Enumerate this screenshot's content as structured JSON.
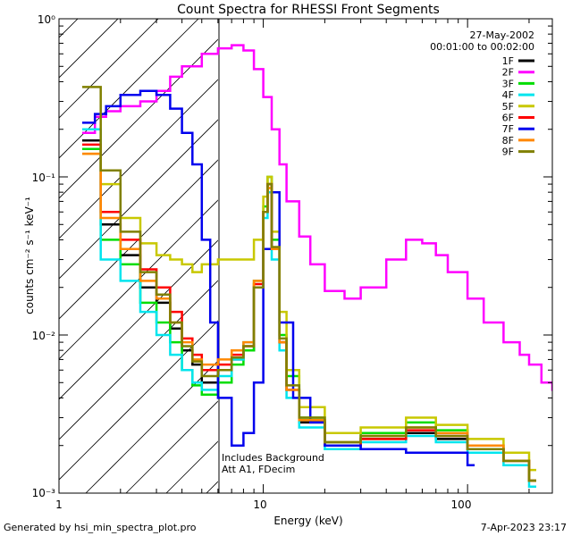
{
  "chart_data": {
    "type": "line",
    "title": "Count Spectra for RHESSI Front Segments",
    "xlabel": "Energy (keV)",
    "ylabel": "counts cm⁻² s⁻¹ keV⁻¹",
    "x_scale": "log",
    "y_scale": "log",
    "xlim": [
      1,
      260
    ],
    "ylim": [
      0.001,
      1
    ],
    "x_tick_labels": [
      "1",
      "10",
      "100"
    ],
    "y_tick_labels": [
      "10⁰",
      "10⁻¹",
      "10⁻²",
      "10⁻³"
    ],
    "date": "27-May-2002",
    "time_range": "00:01:00 to 00:02:00",
    "annotation_background": "Includes Background",
    "annotation_atten": "Att A1, FDecim",
    "hatched_region_max_keV": 6,
    "footer_left": "Generated by hsi_min_spectra_plot.pro",
    "footer_right": "7-Apr-2023 23:17",
    "legend_placement": "top-right",
    "series": [
      {
        "name": "1F",
        "color": "#000000",
        "x": [
          1.3,
          1.6,
          2,
          2.5,
          3,
          3.5,
          4,
          4.5,
          5,
          6,
          7,
          8,
          9,
          10,
          10.5,
          11,
          12,
          13,
          15,
          20,
          30,
          50,
          70,
          100,
          150,
          200
        ],
        "y": [
          0.17,
          0.05,
          0.032,
          0.02,
          0.016,
          0.011,
          0.008,
          0.0065,
          0.005,
          0.006,
          0.007,
          0.008,
          0.02,
          0.06,
          0.09,
          0.035,
          0.009,
          0.0045,
          0.0028,
          0.002,
          0.0022,
          0.0024,
          0.0022,
          0.0019,
          0.0016,
          0.0012
        ]
      },
      {
        "name": "2F",
        "color": "#ff00ff",
        "x": [
          1.3,
          1.5,
          1.7,
          2,
          2.5,
          3,
          3.5,
          4,
          5,
          6,
          7,
          8,
          9,
          10,
          11,
          12,
          13,
          15,
          17,
          20,
          25,
          30,
          40,
          50,
          60,
          70,
          80,
          100,
          120,
          150,
          180,
          200,
          230,
          260
        ],
        "y": [
          0.19,
          0.24,
          0.26,
          0.28,
          0.3,
          0.35,
          0.43,
          0.5,
          0.6,
          0.65,
          0.68,
          0.63,
          0.48,
          0.32,
          0.2,
          0.12,
          0.07,
          0.042,
          0.028,
          0.019,
          0.017,
          0.02,
          0.03,
          0.04,
          0.038,
          0.032,
          0.025,
          0.017,
          0.012,
          0.009,
          0.0075,
          0.0065,
          0.005,
          0.0045
        ]
      },
      {
        "name": "3F",
        "color": "#00dd00",
        "x": [
          1.3,
          1.6,
          2,
          2.5,
          3,
          3.5,
          4,
          4.5,
          5,
          6,
          7,
          8,
          9,
          10,
          10.5,
          11,
          12,
          13,
          15,
          20,
          30,
          50,
          70,
          100,
          150,
          200
        ],
        "y": [
          0.15,
          0.04,
          0.028,
          0.016,
          0.012,
          0.009,
          0.006,
          0.0048,
          0.0042,
          0.005,
          0.0065,
          0.008,
          0.022,
          0.065,
          0.1,
          0.04,
          0.01,
          0.0055,
          0.003,
          0.0021,
          0.0024,
          0.0028,
          0.0025,
          0.002,
          0.0016,
          0.0012
        ]
      },
      {
        "name": "4F",
        "color": "#00e5ee",
        "x": [
          1.3,
          1.6,
          2,
          2.5,
          3,
          3.5,
          4,
          4.5,
          5,
          6,
          7,
          8,
          9,
          10,
          10.5,
          11,
          12,
          13,
          15,
          20,
          30,
          50,
          70,
          100,
          150,
          200
        ],
        "y": [
          0.2,
          0.03,
          0.022,
          0.014,
          0.01,
          0.0075,
          0.006,
          0.005,
          0.0045,
          0.0055,
          0.007,
          0.009,
          0.02,
          0.055,
          0.08,
          0.03,
          0.008,
          0.004,
          0.0026,
          0.0019,
          0.0021,
          0.0023,
          0.0021,
          0.0018,
          0.0015,
          0.0011
        ]
      },
      {
        "name": "5F",
        "color": "#c8c800",
        "x": [
          1.3,
          1.6,
          2,
          2.5,
          3,
          3.5,
          4,
          4.5,
          5,
          6,
          7,
          8,
          9,
          10,
          10.5,
          11,
          12,
          13,
          15,
          20,
          30,
          50,
          70,
          100,
          150,
          200
        ],
        "y": [
          0.14,
          0.09,
          0.055,
          0.038,
          0.032,
          0.03,
          0.028,
          0.025,
          0.028,
          0.03,
          0.03,
          0.03,
          0.04,
          0.075,
          0.1,
          0.045,
          0.014,
          0.006,
          0.0035,
          0.0024,
          0.0026,
          0.003,
          0.0027,
          0.0022,
          0.0018,
          0.0014
        ]
      },
      {
        "name": "6F",
        "color": "#ff0000",
        "x": [
          1.3,
          1.6,
          2,
          2.5,
          3,
          3.5,
          4,
          4.5,
          5,
          6,
          7,
          8,
          9,
          10,
          10.5,
          11,
          12,
          13,
          15,
          20,
          30,
          50,
          70,
          100,
          150,
          200
        ],
        "y": [
          0.16,
          0.06,
          0.04,
          0.026,
          0.02,
          0.014,
          0.0095,
          0.0075,
          0.006,
          0.0065,
          0.0075,
          0.0085,
          0.021,
          0.06,
          0.09,
          0.035,
          0.009,
          0.0045,
          0.0029,
          0.002,
          0.0022,
          0.0025,
          0.0023,
          0.0019,
          0.0016,
          0.0012
        ]
      },
      {
        "name": "7F",
        "color": "#0000ee",
        "x": [
          1.3,
          1.5,
          1.7,
          2,
          2.5,
          3,
          3.5,
          4,
          4.5,
          5,
          5.5,
          6,
          7,
          8,
          9,
          10,
          11,
          12,
          14,
          17,
          20,
          30,
          50,
          100
        ],
        "y": [
          0.22,
          0.25,
          0.28,
          0.33,
          0.35,
          0.33,
          0.27,
          0.19,
          0.12,
          0.04,
          0.012,
          0.004,
          0.002,
          0.0024,
          0.005,
          0.035,
          0.08,
          0.012,
          0.004,
          0.0028,
          0.002,
          0.0019,
          0.0018,
          0.0015
        ]
      },
      {
        "name": "8F",
        "color": "#ff8800",
        "x": [
          1.3,
          1.6,
          2,
          2.5,
          3,
          3.5,
          4,
          4.5,
          5,
          6,
          7,
          8,
          9,
          10,
          10.5,
          11,
          12,
          13,
          15,
          20,
          30,
          50,
          70,
          100,
          150,
          200
        ],
        "y": [
          0.14,
          0.055,
          0.035,
          0.022,
          0.017,
          0.012,
          0.009,
          0.007,
          0.0065,
          0.007,
          0.008,
          0.009,
          0.022,
          0.06,
          0.085,
          0.035,
          0.009,
          0.0045,
          0.0029,
          0.0021,
          0.0023,
          0.0026,
          0.0024,
          0.002,
          0.0016,
          0.0012
        ]
      },
      {
        "name": "9F",
        "color": "#808000",
        "x": [
          1.3,
          1.6,
          2,
          2.5,
          3,
          3.5,
          4,
          4.5,
          5,
          6,
          7,
          8,
          9,
          10,
          10.5,
          11,
          12,
          13,
          15,
          20,
          30,
          50,
          70,
          100,
          150,
          200
        ],
        "y": [
          0.37,
          0.11,
          0.045,
          0.025,
          0.018,
          0.012,
          0.0085,
          0.0068,
          0.0055,
          0.006,
          0.0072,
          0.0085,
          0.02,
          0.06,
          0.09,
          0.036,
          0.0095,
          0.0048,
          0.003,
          0.0021,
          0.0023,
          0.0026,
          0.0023,
          0.0019,
          0.0016,
          0.0012
        ]
      }
    ]
  }
}
